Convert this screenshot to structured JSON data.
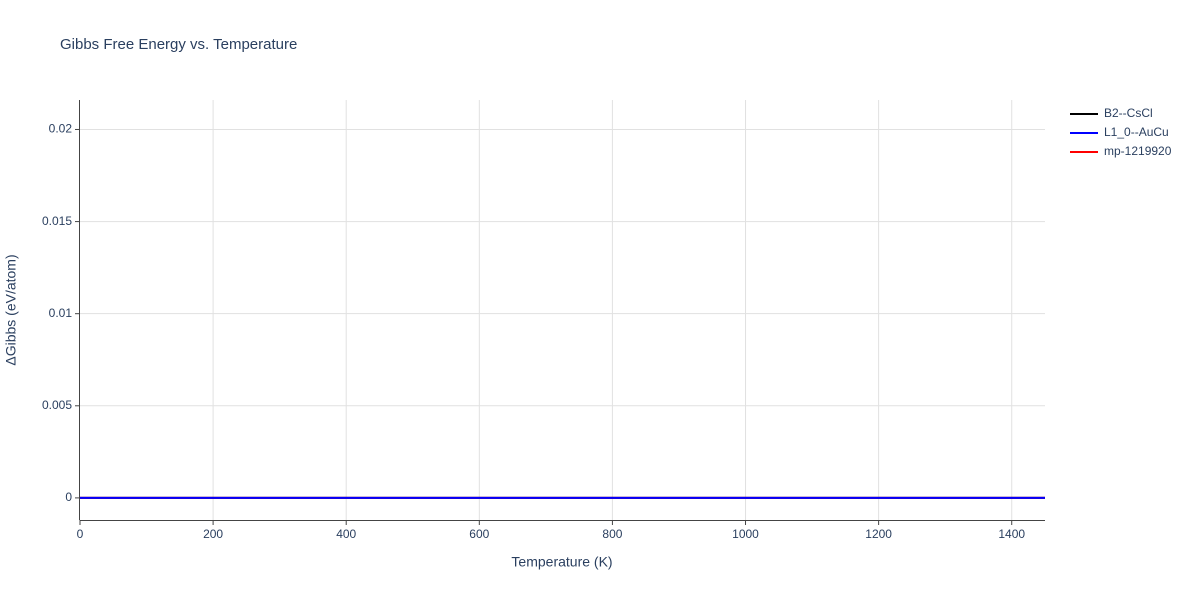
{
  "chart_data": {
    "type": "line",
    "title": "Gibbs Free Energy vs. Temperature",
    "x_label": "Temperature (K)",
    "y_label": "ΔGibbs (eV/atom)",
    "x": [
      0,
      1450
    ],
    "series": [
      {
        "name": "B2--CsCl",
        "color": "#000000",
        "values": [
          0,
          0
        ]
      },
      {
        "name": "L1_0--AuCu",
        "color": "#0000ff",
        "values": [
          0,
          0
        ]
      },
      {
        "name": "mp-1219920",
        "color": "#ff0000",
        "values": [
          0,
          0
        ]
      }
    ],
    "xlim": [
      0,
      1450
    ],
    "ylim": [
      -0.0012,
      0.0216
    ],
    "xticks": [
      0,
      200,
      400,
      600,
      800,
      1000,
      1200,
      1400
    ],
    "yticks": [
      0,
      0.005,
      0.01,
      0.015,
      0.02
    ],
    "grid": true,
    "legend": "right"
  }
}
